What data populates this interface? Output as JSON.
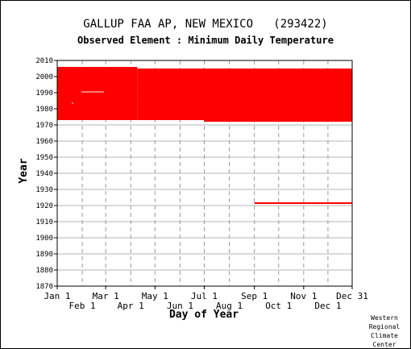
{
  "chart_data": {
    "type": "timeline",
    "title": "GALLUP FAA AP, NEW MEXICO   (293422)",
    "subtitle": "Observed Element : Minimum Daily Temperature",
    "xlabel": "Day of Year",
    "ylabel": "Year",
    "ylim": [
      1870,
      2010
    ],
    "y_ticks": [
      1870,
      1880,
      1890,
      1900,
      1910,
      1920,
      1930,
      1940,
      1950,
      1960,
      1970,
      1980,
      1990,
      2000,
      2010
    ],
    "xlim": [
      1,
      366
    ],
    "x_ticks_upper": [
      {
        "label": "Jan 1",
        "day": 1
      },
      {
        "label": "Mar 1",
        "day": 61
      },
      {
        "label": "May 1",
        "day": 122
      },
      {
        "label": "Jul 1",
        "day": 183
      },
      {
        "label": "Sep 1",
        "day": 245
      },
      {
        "label": "Nov 1",
        "day": 306
      },
      {
        "label": "Dec 31",
        "day": 366
      }
    ],
    "x_ticks_lower": [
      {
        "label": "Feb 1",
        "day": 32
      },
      {
        "label": "Apr 1",
        "day": 92
      },
      {
        "label": "Jun 1",
        "day": 153
      },
      {
        "label": "Aug 1",
        "day": 214
      },
      {
        "label": "Oct 1",
        "day": 275
      },
      {
        "label": "Dec 1",
        "day": 336
      }
    ],
    "grid": true,
    "series_color": "#ff0000",
    "data_blocks": [
      {
        "day_start": 1,
        "day_end": 100,
        "year_start": 1973,
        "year_end": 2006
      },
      {
        "day_start": 100,
        "day_end": 183,
        "year_start": 1973,
        "year_end": 2005
      },
      {
        "day_start": 183,
        "day_end": 366,
        "year_start": 1972,
        "year_end": 2005
      },
      {
        "day_start": 245,
        "day_end": 366,
        "year_start": 1921,
        "year_end": 1922
      }
    ],
    "gaps": [
      {
        "day_start": 31,
        "day_end": 59,
        "year_start": 1990,
        "year_end": 1991
      },
      {
        "day_start": 19,
        "day_end": 21,
        "year_start": 1983,
        "year_end": 1984
      }
    ]
  },
  "credit": [
    "Western",
    "Regional",
    "Climate",
    "Center"
  ]
}
